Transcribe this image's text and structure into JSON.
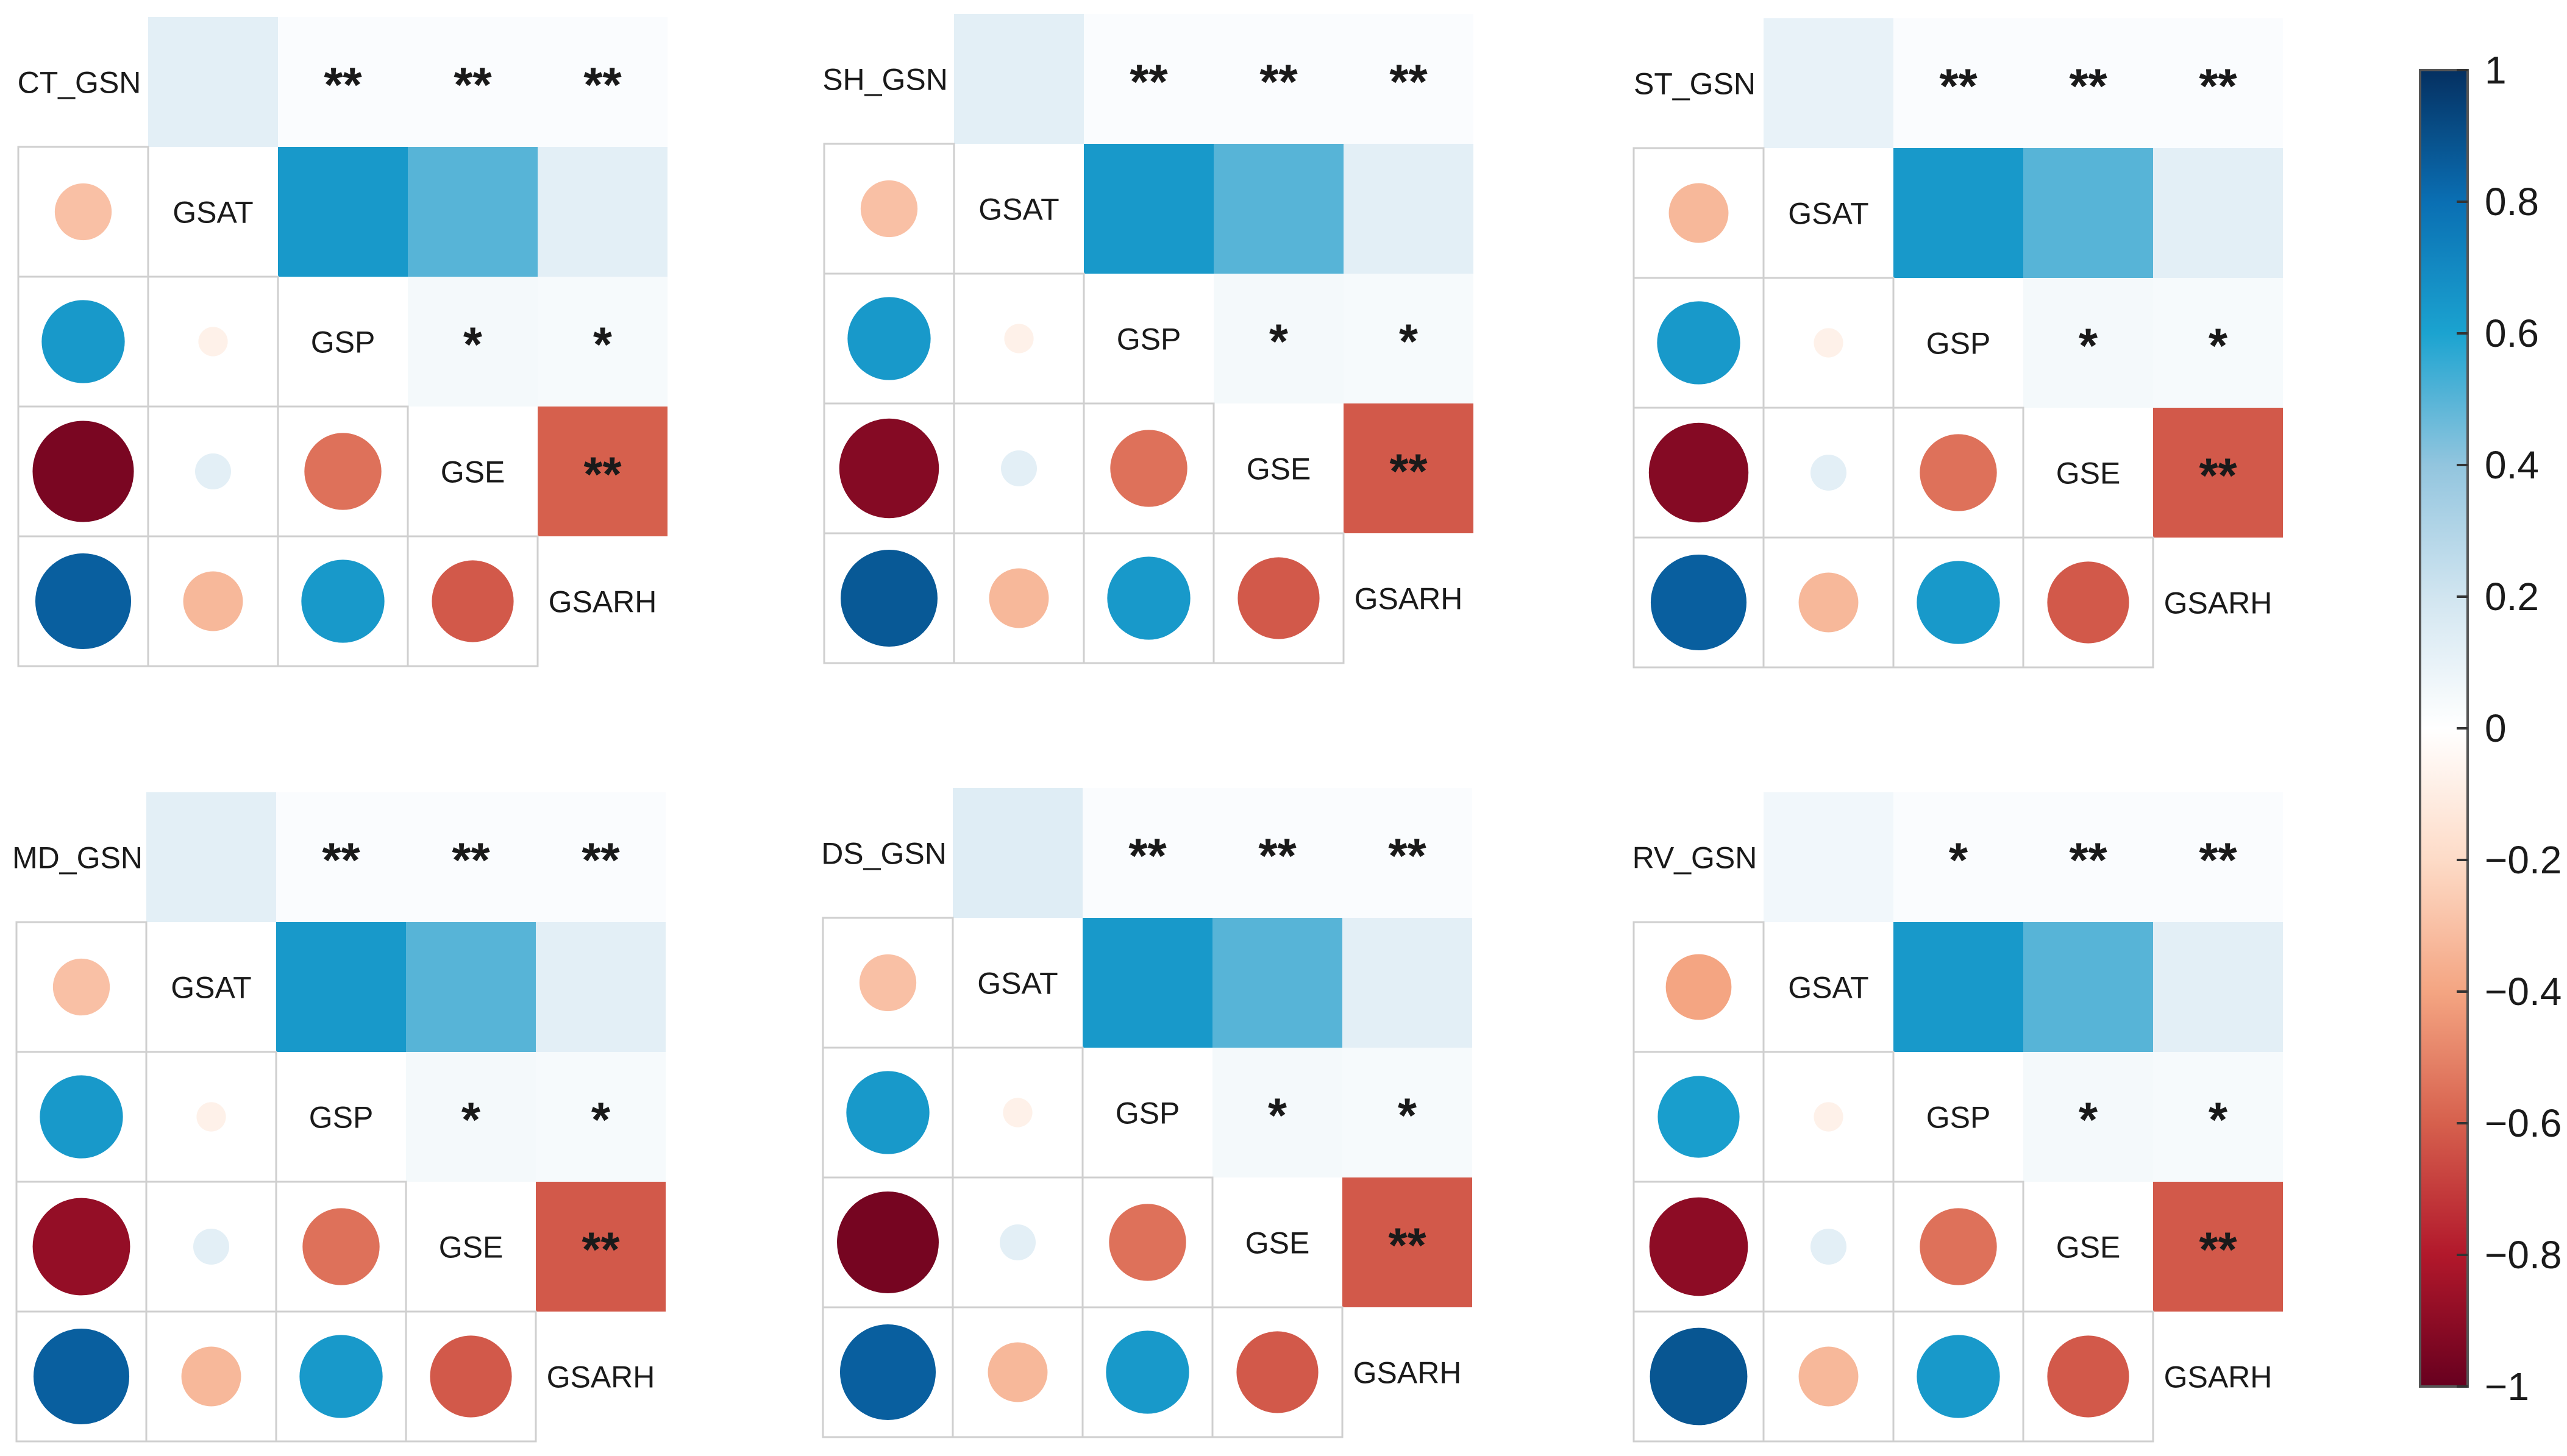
{
  "chart_data": {
    "type": "correlation-matrix",
    "variables": [
      "GSAT",
      "GSP",
      "GSE",
      "GSARH"
    ],
    "color_scale": {
      "min": -1,
      "max": 1,
      "ticks": [
        "1",
        "0.8",
        "0.6",
        "0.4",
        "0.2",
        "0",
        "−0.2",
        "−0.4",
        "−0.6",
        "−0.8",
        "−1"
      ],
      "tick_values": [
        1,
        0.8,
        0.6,
        0.4,
        0.2,
        0,
        -0.2,
        -0.4,
        -0.6,
        -0.8,
        -1
      ],
      "colors": {
        "neg_end": "#67001f",
        "neg_mid": "#d6604d",
        "neg_light": "#fddbc7",
        "zero": "#ffffff",
        "pos_light": "#d1e5f0",
        "pos_mid": "#4393c3",
        "pos_end": "#053061"
      }
    },
    "panels": [
      {
        "name": "CT_GSN",
        "correlations": [
          [
            0.12,
            -0.3,
            0.64,
            -0.95,
            0.85
          ],
          [
            0.64,
            0.5,
            0.12
          ],
          [
            0.05,
            0.04
          ],
          [
            -0.6
          ]
        ],
        "gsn_corr": [
          0.12,
          -0.3,
          0.64,
          -0.95,
          0.85
        ],
        "pairs": {
          "GSAT-GSP": 0.64,
          "GSAT-GSE": 0.5,
          "GSAT-GSARH": 0.12,
          "GSP-GSE": 0.05,
          "GSP-GSARH": 0.04,
          "GSE-GSARH": -0.6,
          "GSP-GSAT": -0.08,
          "GSE-GSAT": 0.12,
          "GSARH-GSAT": -0.33,
          "GSE-GSP": -0.55,
          "GSARH-GSP": 0.64,
          "GSARH-GSE": -0.62
        },
        "sig_top": [
          "**",
          "**",
          "**"
        ],
        "sig_gsp": [
          "*",
          "*"
        ],
        "sig_gse": [
          "**"
        ]
      },
      {
        "name": "SH_GSN",
        "gsn_corr": [
          0.12,
          -0.3,
          0.64,
          -0.92,
          0.87
        ],
        "pairs": {
          "GSAT-GSP": 0.64,
          "GSAT-GSE": 0.5,
          "GSAT-GSARH": 0.12,
          "GSP-GSE": 0.05,
          "GSP-GSARH": 0.04,
          "GSP-GSAT": -0.08,
          "GSE-GSAT": 0.12,
          "GSARH-GSAT": -0.33,
          "GSE-GSP": -0.55,
          "GSARH-GSP": 0.64,
          "GSARH-GSE": -0.62
        },
        "sig_top": [
          "**",
          "**",
          "**"
        ],
        "sig_gsp": [
          "*",
          "*"
        ],
        "sig_gse": [
          "**"
        ]
      },
      {
        "name": "ST_GSN",
        "gsn_corr": [
          0.1,
          -0.33,
          0.64,
          -0.92,
          0.85
        ],
        "pairs": {
          "GSAT-GSP": 0.64,
          "GSAT-GSE": 0.5,
          "GSAT-GSARH": 0.12,
          "GSP-GSE": 0.05,
          "GSP-GSARH": 0.04,
          "GSP-GSAT": -0.08,
          "GSE-GSAT": 0.12,
          "GSARH-GSAT": -0.33,
          "GSE-GSP": -0.55,
          "GSARH-GSP": 0.64,
          "GSARH-GSE": -0.62
        },
        "sig_top": [
          "**",
          "**",
          "**"
        ],
        "sig_gsp": [
          "*",
          "*"
        ],
        "sig_gse": [
          "**"
        ]
      },
      {
        "name": "MD_GSN",
        "gsn_corr": [
          0.12,
          -0.3,
          0.64,
          -0.88,
          0.85
        ],
        "pairs": {
          "GSAT-GSP": 0.64,
          "GSAT-GSE": 0.5,
          "GSAT-GSARH": 0.12,
          "GSP-GSE": 0.05,
          "GSP-GSARH": 0.04,
          "GSP-GSAT": -0.08,
          "GSE-GSAT": 0.12,
          "GSARH-GSAT": -0.33,
          "GSE-GSP": -0.55,
          "GSARH-GSP": 0.64,
          "GSARH-GSE": -0.62
        },
        "sig_top": [
          "**",
          "**",
          "**"
        ],
        "sig_gsp": [
          "*",
          "*"
        ],
        "sig_gse": [
          "**"
        ]
      },
      {
        "name": "DS_GSN",
        "gsn_corr": [
          0.14,
          -0.3,
          0.64,
          -0.96,
          0.85
        ],
        "pairs": {
          "GSAT-GSP": 0.64,
          "GSAT-GSE": 0.5,
          "GSAT-GSARH": 0.12,
          "GSP-GSE": 0.05,
          "GSP-GSARH": 0.04,
          "GSP-GSAT": -0.08,
          "GSE-GSAT": 0.12,
          "GSARH-GSAT": -0.33,
          "GSE-GSP": -0.55,
          "GSARH-GSP": 0.64,
          "GSARH-GSE": -0.62
        },
        "sig_top": [
          "**",
          "**",
          "**"
        ],
        "sig_gsp": [
          "*",
          "*"
        ],
        "sig_gse": [
          "**"
        ]
      },
      {
        "name": "RV_GSN",
        "gsn_corr": [
          0.06,
          -0.4,
          0.62,
          -0.9,
          0.88
        ],
        "pairs": {
          "GSAT-GSP": 0.64,
          "GSAT-GSE": 0.5,
          "GSAT-GSARH": 0.12,
          "GSP-GSE": 0.05,
          "GSP-GSARH": 0.04,
          "GSP-GSAT": -0.08,
          "GSE-GSAT": 0.12,
          "GSARH-GSAT": -0.33,
          "GSE-GSP": -0.55,
          "GSARH-GSP": 0.64,
          "GSARH-GSE": -0.62
        },
        "sig_top": [
          "*",
          "**",
          "**"
        ],
        "sig_gsp": [
          "*",
          "*"
        ],
        "sig_gse": [
          "**"
        ]
      }
    ]
  }
}
